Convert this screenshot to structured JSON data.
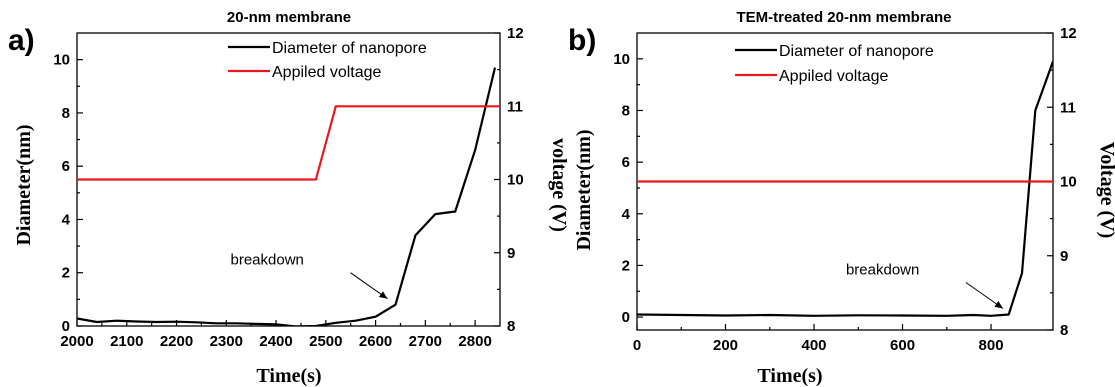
{
  "chart_data": [
    {
      "panel_label": "a)",
      "type": "line",
      "title": "20-nm membrane",
      "xlabel": "Time(s)",
      "ylabel": "Diameter(nm)",
      "y2label": "voltage (V)",
      "xlim": [
        2000,
        2850
      ],
      "ylim": [
        0,
        11
      ],
      "y2lim": [
        8,
        12
      ],
      "xticks": [
        2000,
        2100,
        2200,
        2300,
        2400,
        2500,
        2600,
        2700,
        2800
      ],
      "yticks": [
        0,
        2,
        4,
        6,
        8,
        10
      ],
      "y2ticks": [
        8,
        9,
        10,
        11,
        12
      ],
      "grid": false,
      "legend_position": "top-right",
      "annotation": {
        "text": "breakdown",
        "x": 2640,
        "y": 0.8
      },
      "series": [
        {
          "name": "Diameter of nanopore",
          "color": "#000000",
          "axis": "left",
          "x": [
            2000,
            2040,
            2080,
            2120,
            2160,
            2200,
            2240,
            2280,
            2320,
            2360,
            2400,
            2440,
            2480,
            2520,
            2560,
            2600,
            2640,
            2680,
            2720,
            2760,
            2800,
            2840
          ],
          "y": [
            0.28,
            0.15,
            0.2,
            0.17,
            0.15,
            0.16,
            0.14,
            0.1,
            0.1,
            0.08,
            0.06,
            -0.02,
            0.0,
            0.12,
            0.2,
            0.35,
            0.8,
            3.4,
            4.2,
            4.3,
            6.6,
            9.7
          ]
        },
        {
          "name": "Appiled voltage",
          "color": "#e8191c",
          "axis": "right",
          "x": [
            2000,
            2480,
            2520,
            2850
          ],
          "y": [
            10,
            10,
            11,
            11
          ]
        }
      ]
    },
    {
      "panel_label": "b)",
      "type": "line",
      "title": "TEM-treated 20-nm membrane",
      "xlabel": "Time(s)",
      "ylabel": "Diameter(nm)",
      "y2label": "Voltage (V)",
      "xlim": [
        0,
        940
      ],
      "ylim": [
        -0.5,
        11
      ],
      "y2lim": [
        8,
        12
      ],
      "xticks": [
        0,
        200,
        400,
        600,
        800
      ],
      "yticks": [
        0,
        2,
        4,
        6,
        8,
        10
      ],
      "y2ticks": [
        8,
        9,
        10,
        11,
        12
      ],
      "grid": false,
      "legend_position": "top-right",
      "annotation": {
        "text": "breakdown",
        "x": 845,
        "y": 0.1
      },
      "series": [
        {
          "name": "Diameter of nanopore",
          "color": "#000000",
          "axis": "left",
          "x": [
            0,
            100,
            200,
            300,
            400,
            500,
            600,
            700,
            760,
            800,
            840,
            870,
            900,
            940
          ],
          "y": [
            0.1,
            0.08,
            0.06,
            0.08,
            0.05,
            0.07,
            0.06,
            0.05,
            0.08,
            0.05,
            0.1,
            1.7,
            8.0,
            9.9
          ]
        },
        {
          "name": "Appiled voltage",
          "color": "#e8191c",
          "axis": "right",
          "x": [
            0,
            940
          ],
          "y": [
            10,
            10
          ]
        }
      ]
    }
  ]
}
